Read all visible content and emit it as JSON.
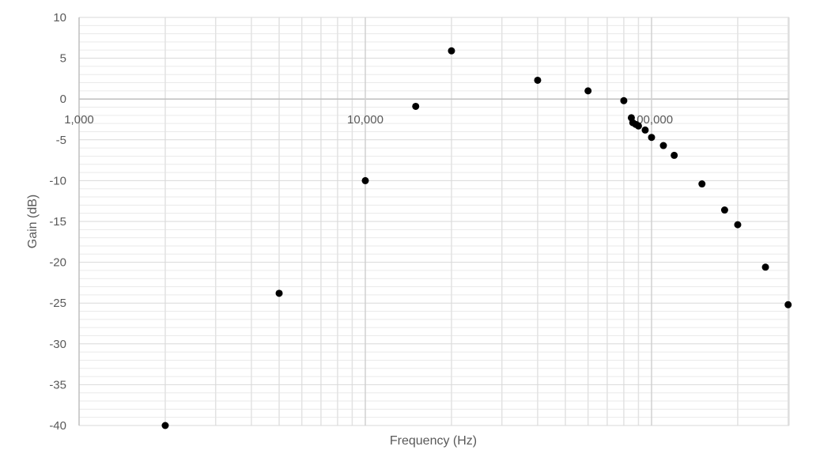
{
  "chart_data": {
    "type": "scatter",
    "title": "",
    "xlabel": "Frequency (Hz)",
    "ylabel": "Gain (dB)",
    "x_scale": "log",
    "xlim": [
      1000,
      350000
    ],
    "ylim": [
      -40,
      10
    ],
    "y_ticks": [
      "10",
      "5",
      "0",
      "-5",
      "-10",
      "-15",
      "-20",
      "-25",
      "-30",
      "-35",
      "-40"
    ],
    "x_ticks": [
      "1,000",
      "10,000",
      "100,000"
    ],
    "grid": true,
    "legend": "none",
    "marker_color": "#000000",
    "points": [
      {
        "x": 2000,
        "y": -40
      },
      {
        "x": 5000,
        "y": -23.8
      },
      {
        "x": 10000,
        "y": -10
      },
      {
        "x": 15000,
        "y": -0.9
      },
      {
        "x": 20000,
        "y": 5.9
      },
      {
        "x": 40000,
        "y": 2.3
      },
      {
        "x": 60000,
        "y": 1.0
      },
      {
        "x": 80000,
        "y": -0.2
      },
      {
        "x": 85000,
        "y": -2.3
      },
      {
        "x": 86000,
        "y": -2.9
      },
      {
        "x": 88000,
        "y": -3.1
      },
      {
        "x": 90000,
        "y": -3.3
      },
      {
        "x": 95000,
        "y": -3.8
      },
      {
        "x": 100000,
        "y": -4.7
      },
      {
        "x": 110000,
        "y": -5.7
      },
      {
        "x": 120000,
        "y": -6.9
      },
      {
        "x": 150000,
        "y": -10.4
      },
      {
        "x": 180000,
        "y": -13.6
      },
      {
        "x": 200000,
        "y": -15.4
      },
      {
        "x": 250000,
        "y": -20.6
      },
      {
        "x": 300000,
        "y": -25.2
      }
    ]
  }
}
